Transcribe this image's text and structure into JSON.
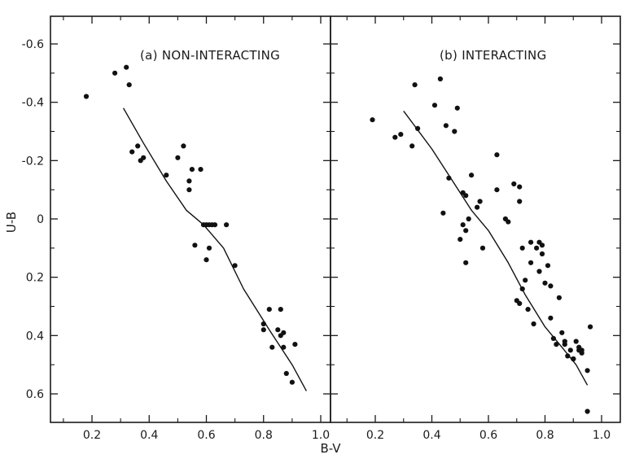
{
  "chart_data": [
    {
      "type": "scatter",
      "title": "(a) NON-INTERACTING",
      "xlabel": "B-V",
      "ylabel": "U-B",
      "xlim": [
        0.05,
        1.02
      ],
      "ylim": [
        0.7,
        -0.7
      ],
      "y_inverted": true,
      "xticks": [
        0.2,
        0.4,
        0.6,
        0.8,
        1.0
      ],
      "xtick_labels": [
        "0.2",
        "0.4",
        "0.6",
        "0.8",
        "1.0"
      ],
      "yticks": [
        -0.6,
        -0.4,
        -0.2,
        0,
        0.2,
        0.4,
        0.6
      ],
      "ytick_labels": [
        "-0.6",
        "-0.4",
        "-0.2",
        "0",
        "0.2",
        "0.4",
        "0.6"
      ],
      "grid": false,
      "series": [
        {
          "kind": "points",
          "x": [
            0.18,
            0.28,
            0.32,
            0.33,
            0.34,
            0.36,
            0.37,
            0.38,
            0.46,
            0.5,
            0.52,
            0.54,
            0.54,
            0.55,
            0.56,
            0.58,
            0.59,
            0.6,
            0.61,
            0.6,
            0.61,
            0.62,
            0.63,
            0.67,
            0.7,
            0.8,
            0.8,
            0.82,
            0.83,
            0.85,
            0.86,
            0.86,
            0.87,
            0.87,
            0.88,
            0.9,
            0.91
          ],
          "y": [
            -0.42,
            -0.5,
            -0.52,
            -0.46,
            -0.23,
            -0.25,
            -0.2,
            -0.21,
            -0.15,
            -0.21,
            -0.25,
            -0.13,
            -0.1,
            -0.17,
            0.09,
            -0.17,
            0.02,
            0.02,
            0.1,
            0.14,
            0.02,
            0.02,
            0.02,
            0.02,
            0.16,
            0.36,
            0.38,
            0.31,
            0.44,
            0.38,
            0.31,
            0.4,
            0.39,
            0.44,
            0.53,
            0.56,
            0.43
          ]
        },
        {
          "kind": "line",
          "x": [
            0.31,
            0.38,
            0.46,
            0.53,
            0.59,
            0.66,
            0.73,
            0.82,
            0.9,
            0.95
          ],
          "y": [
            -0.38,
            -0.26,
            -0.13,
            -0.03,
            0.02,
            0.1,
            0.24,
            0.38,
            0.5,
            0.59
          ]
        }
      ]
    },
    {
      "type": "scatter",
      "title": "(b) INTERACTING",
      "xlabel": "B-V",
      "xlim": [
        0.05,
        1.02
      ],
      "ylim": [
        0.7,
        -0.7
      ],
      "y_inverted": true,
      "xticks": [
        0.2,
        0.4,
        0.6,
        0.8,
        1.0
      ],
      "xtick_labels": [
        "0.2",
        "0.4",
        "0.6",
        "0.8",
        "1.0"
      ],
      "grid": false,
      "series": [
        {
          "kind": "points",
          "x": [
            0.19,
            0.27,
            0.29,
            0.33,
            0.34,
            0.35,
            0.41,
            0.43,
            0.44,
            0.45,
            0.46,
            0.48,
            0.49,
            0.5,
            0.51,
            0.51,
            0.52,
            0.52,
            0.52,
            0.53,
            0.54,
            0.56,
            0.57,
            0.58,
            0.63,
            0.63,
            0.66,
            0.67,
            0.69,
            0.7,
            0.71,
            0.71,
            0.71,
            0.72,
            0.72,
            0.73,
            0.74,
            0.75,
            0.75,
            0.76,
            0.77,
            0.78,
            0.78,
            0.79,
            0.79,
            0.8,
            0.81,
            0.82,
            0.82,
            0.83,
            0.84,
            0.85,
            0.86,
            0.87,
            0.87,
            0.88,
            0.89,
            0.9,
            0.9,
            0.91,
            0.92,
            0.92,
            0.93,
            0.93,
            0.95,
            0.95,
            0.96
          ],
          "y": [
            -0.34,
            -0.28,
            -0.29,
            -0.25,
            -0.46,
            -0.31,
            -0.39,
            -0.48,
            -0.02,
            -0.32,
            -0.14,
            -0.3,
            -0.38,
            0.07,
            -0.09,
            0.02,
            0.15,
            0.04,
            -0.08,
            0.0,
            -0.15,
            -0.04,
            -0.06,
            0.1,
            -0.22,
            -0.1,
            0.0,
            0.01,
            -0.12,
            0.28,
            -0.06,
            0.29,
            -0.11,
            0.24,
            0.1,
            0.21,
            0.31,
            0.15,
            0.08,
            0.36,
            0.1,
            0.18,
            0.08,
            0.12,
            0.09,
            0.22,
            0.16,
            0.34,
            0.23,
            0.41,
            0.43,
            0.27,
            0.39,
            0.43,
            0.42,
            0.47,
            0.45,
            0.48,
            0.48,
            0.42,
            0.45,
            0.44,
            0.45,
            0.46,
            0.52,
            0.66,
            0.37
          ]
        },
        {
          "kind": "line",
          "x": [
            0.3,
            0.4,
            0.48,
            0.54,
            0.6,
            0.67,
            0.73,
            0.8,
            0.86,
            0.91,
            0.95
          ],
          "y": [
            -0.37,
            -0.24,
            -0.12,
            -0.03,
            0.04,
            0.15,
            0.26,
            0.37,
            0.44,
            0.5,
            0.57
          ]
        }
      ]
    }
  ]
}
